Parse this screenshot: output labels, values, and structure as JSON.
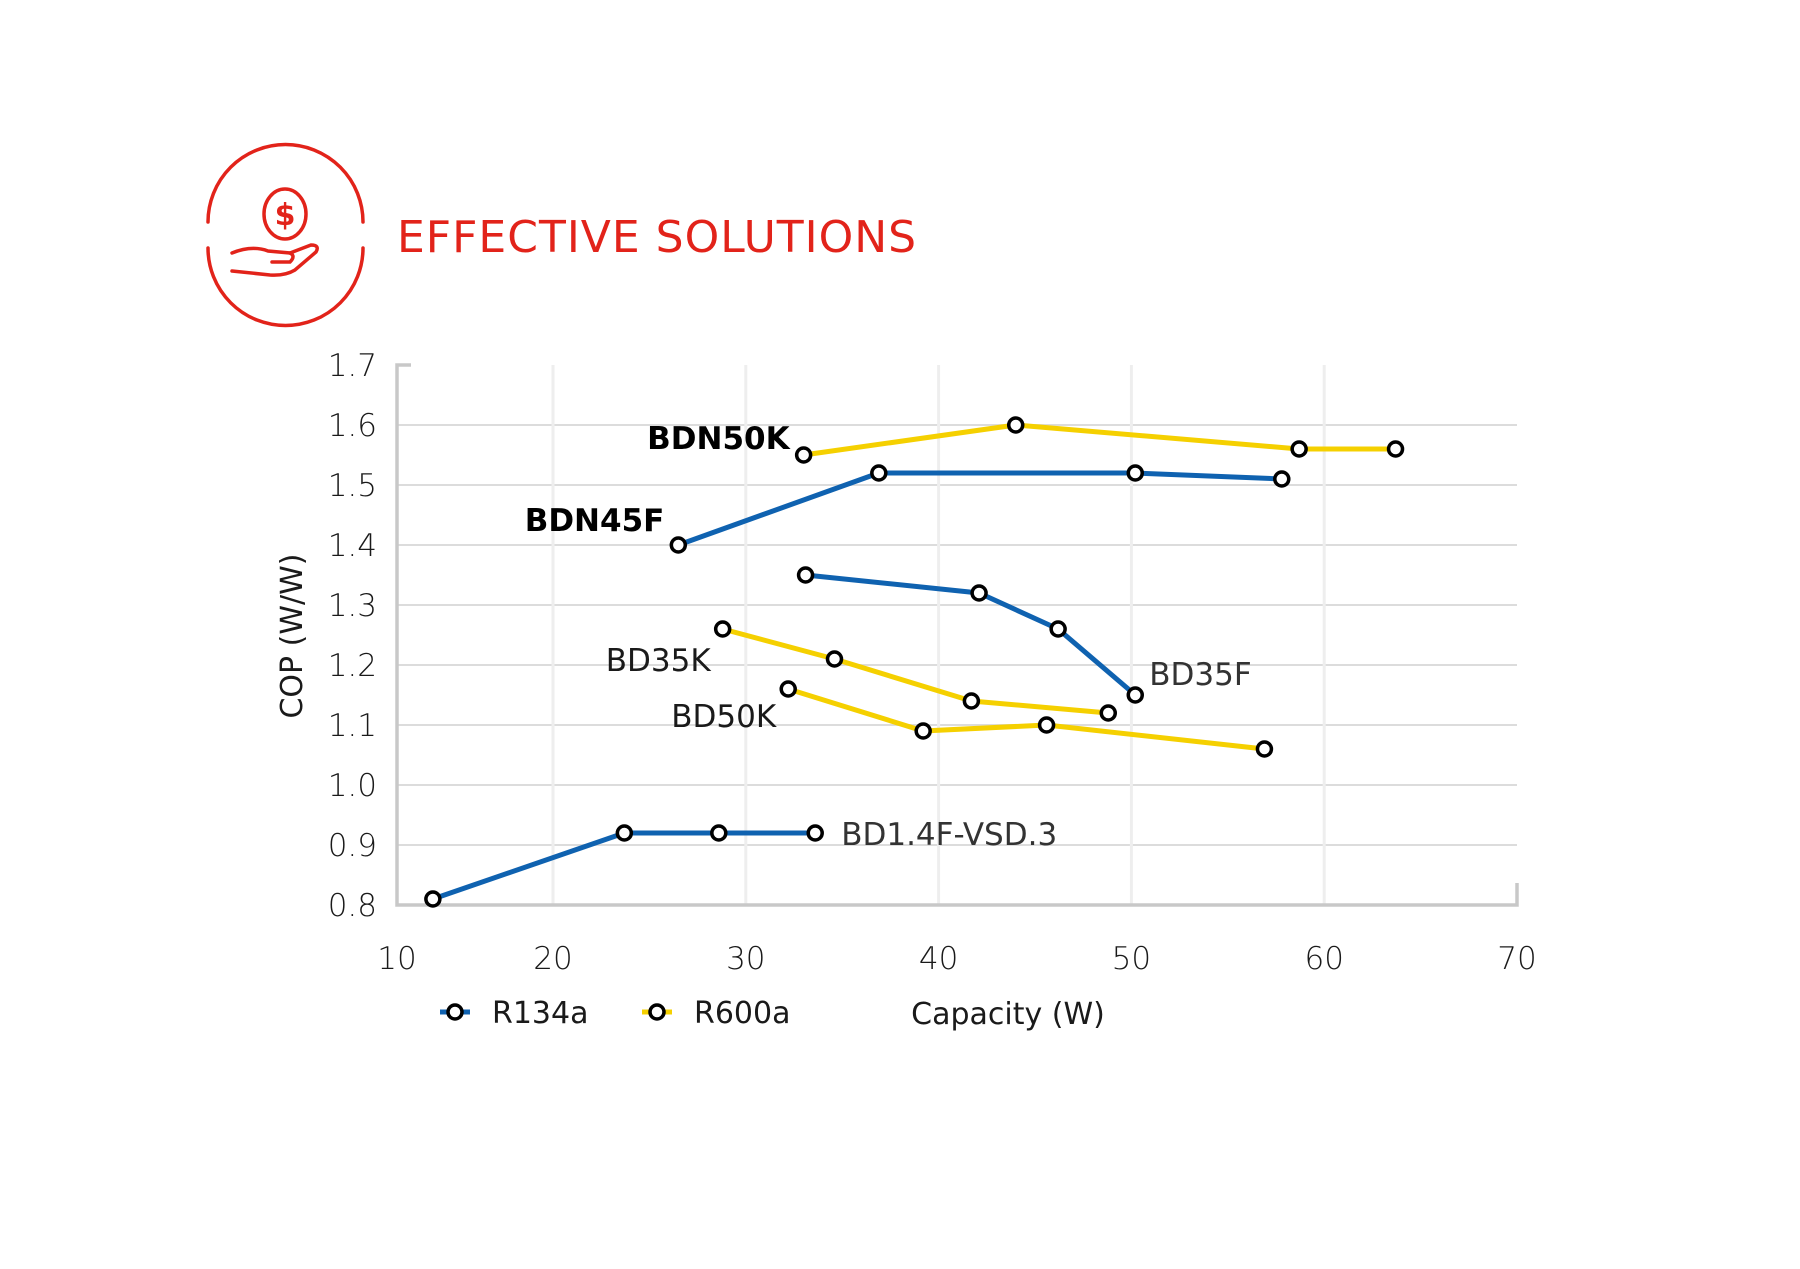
{
  "header": {
    "title": "EFFECTIVE SOLUTIONS",
    "icon": "hand-holding-dollar-icon",
    "accent_color": "#e2231a"
  },
  "chart_data": {
    "type": "line",
    "title": "EFFECTIVE SOLUTIONS",
    "xlabel": "Capacity (W)",
    "ylabel": "COP (W/W)",
    "xlim": [
      10,
      70
    ],
    "ylim": [
      0.8,
      1.7
    ],
    "xticks": [
      "10",
      "20",
      "30",
      "40",
      "50",
      "60",
      "70"
    ],
    "yticks": [
      "1.7",
      "1.6",
      "1.5",
      "1.4",
      "1.3",
      "1.2",
      "1.1",
      "1.0",
      "0.9",
      "0.8"
    ],
    "grid": true,
    "legend": {
      "placement": "bottom-left",
      "entries": [
        {
          "name": "R134a",
          "color": "#0f62b0"
        },
        {
          "name": "R600a",
          "color": "#f5d000"
        }
      ]
    },
    "series": [
      {
        "name": "BDN50K",
        "refrigerant": "R600a",
        "color": "#f5d000",
        "label_style": "bold",
        "x": [
          33.0,
          44.0,
          58.7,
          63.7
        ],
        "y": [
          1.55,
          1.6,
          1.56,
          1.56
        ]
      },
      {
        "name": "BDN45F",
        "refrigerant": "R134a",
        "color": "#0f62b0",
        "label_style": "bold",
        "x": [
          26.5,
          36.9,
          50.2,
          57.8
        ],
        "y": [
          1.4,
          1.52,
          1.52,
          1.51
        ]
      },
      {
        "name": "BD35F",
        "refrigerant": "R134a",
        "color": "#0f62b0",
        "label_style": "light",
        "x": [
          33.1,
          42.1,
          46.2,
          50.2
        ],
        "y": [
          1.35,
          1.32,
          1.26,
          1.15
        ]
      },
      {
        "name": "BD35K",
        "refrigerant": "R600a",
        "color": "#f5d000",
        "label_style": "normal",
        "x": [
          28.8,
          34.6,
          41.7,
          48.8
        ],
        "y": [
          1.26,
          1.21,
          1.14,
          1.12
        ]
      },
      {
        "name": "BD50K",
        "refrigerant": "R600a",
        "color": "#f5d000",
        "label_style": "normal",
        "x": [
          32.2,
          39.2,
          45.6,
          56.9
        ],
        "y": [
          1.16,
          1.09,
          1.1,
          1.06
        ]
      },
      {
        "name": "BD1.4F-VSD.3",
        "refrigerant": "R134a",
        "color": "#0f62b0",
        "label_style": "light",
        "x": [
          12.3,
          23.7,
          28.6,
          33.6
        ],
        "y": [
          0.81,
          0.92,
          0.92,
          0.92
        ]
      }
    ]
  }
}
